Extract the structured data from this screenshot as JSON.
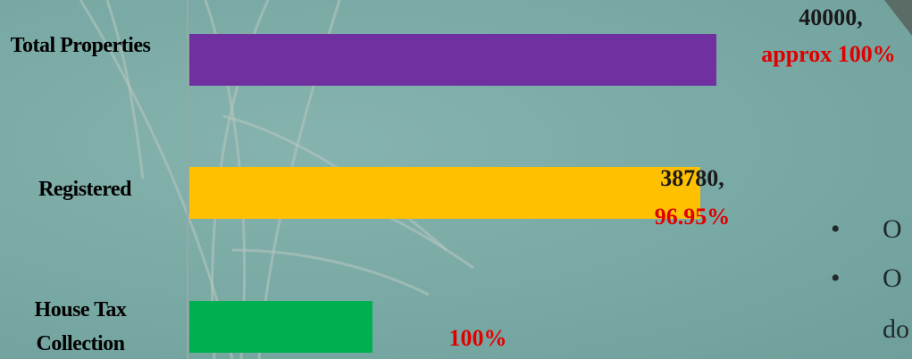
{
  "chart_data": {
    "type": "hbar",
    "categories": [
      "Total Properties",
      "Registered",
      "House Tax Collection"
    ],
    "values": [
      40000,
      38780,
      13900
    ],
    "value_labels": [
      "40000,",
      "38780,",
      null
    ],
    "annotations": [
      "approx 100%",
      "96.95%",
      "100%"
    ],
    "colors": [
      "#7030a0",
      "#ffc000",
      "#00b050"
    ]
  },
  "slide_text": [
    "O",
    "O",
    "do"
  ]
}
